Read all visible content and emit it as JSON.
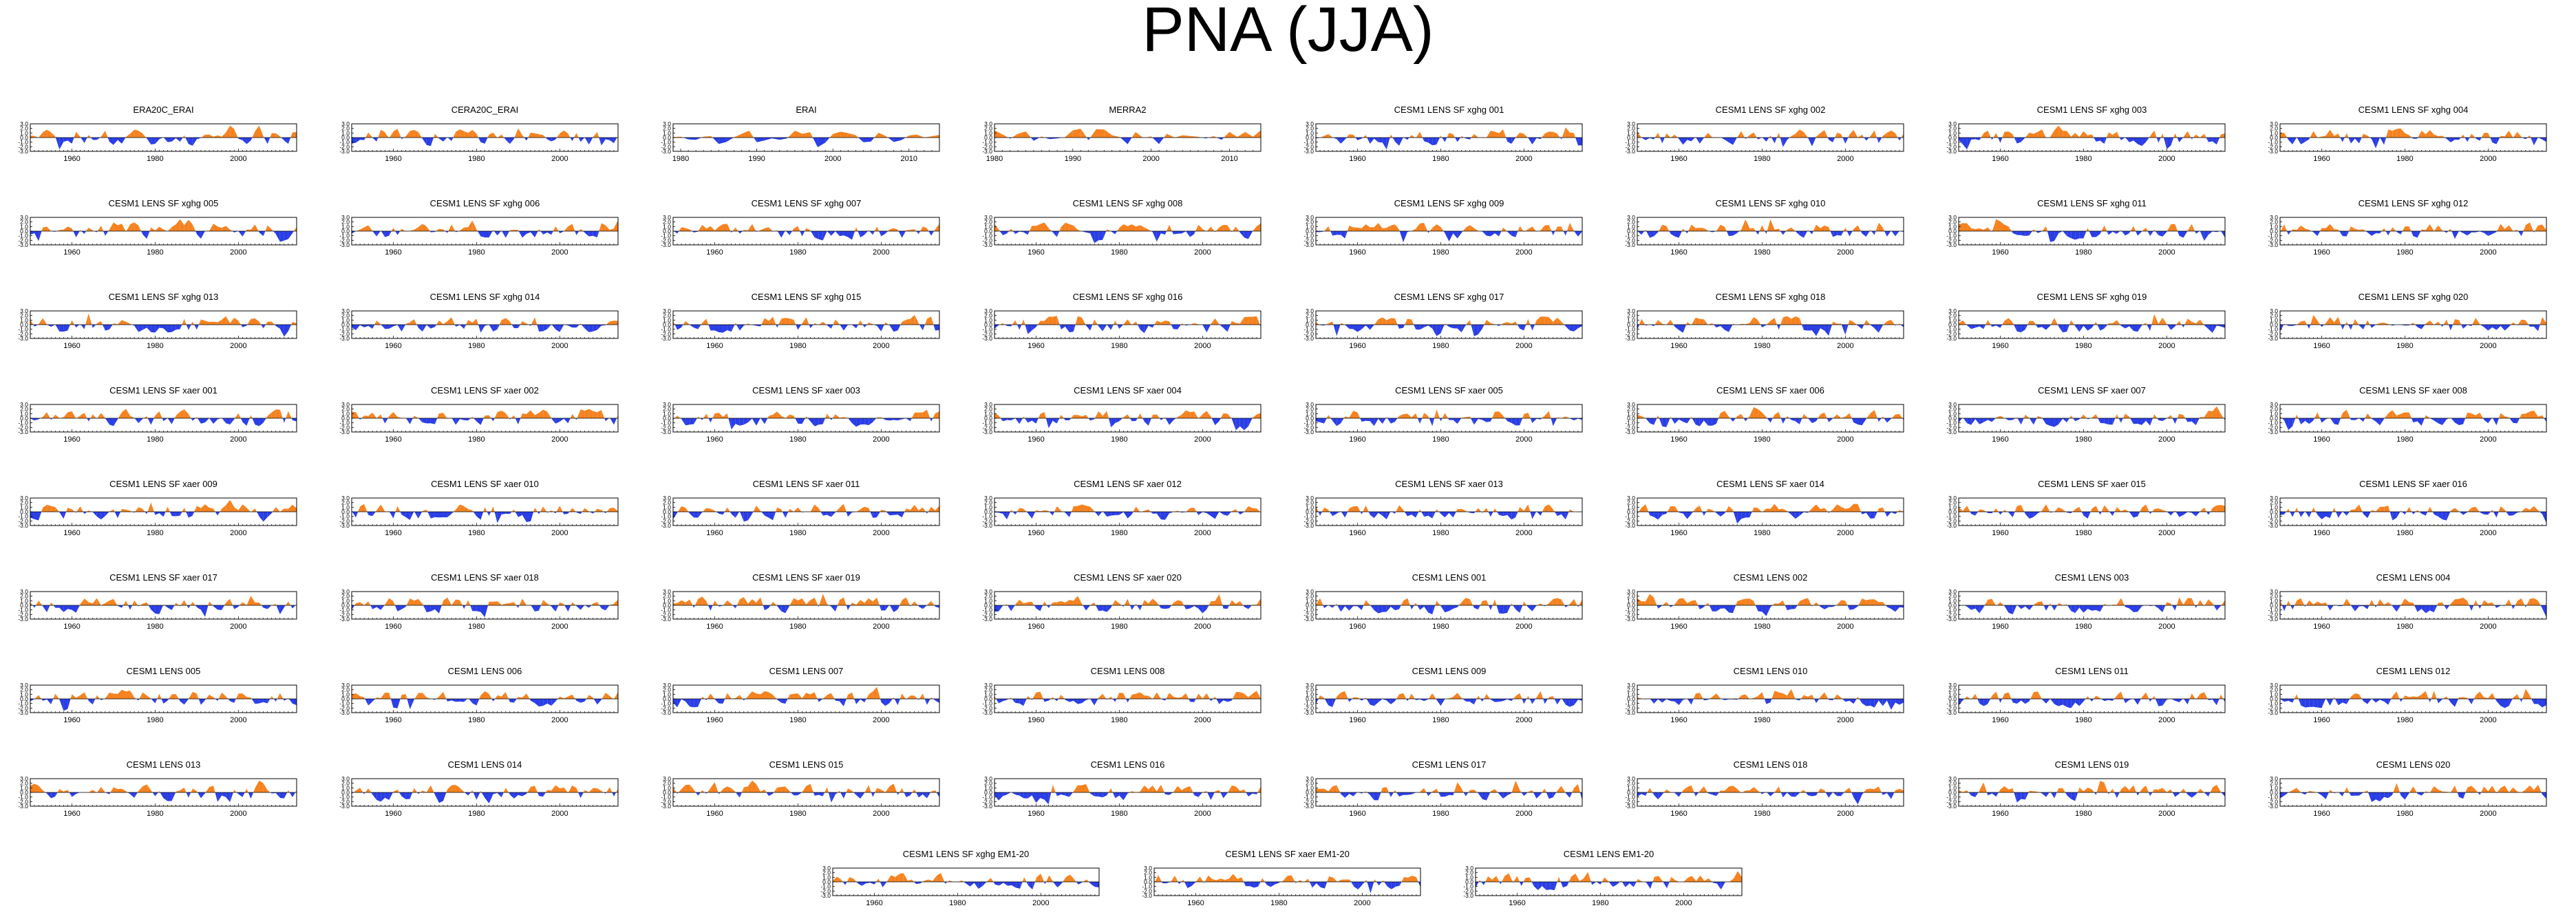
{
  "title": "PNA (JJA)",
  "colors": {
    "positive": "#f5821f",
    "negative": "#2a3ee6",
    "axis": "#000000"
  },
  "chart_data": {
    "type": "area",
    "layout": "panel-grid",
    "y_ticks": [
      "3.0",
      "2.0",
      "1.0",
      "0.0",
      "-1.0",
      "-2.0",
      "-3.0"
    ],
    "ylim": [
      -3.0,
      3.0
    ],
    "panels": [
      {
        "title": "ERA20C_ERAI",
        "xlim": [
          1950,
          2014
        ],
        "xticks": [
          "1960",
          "1980",
          "2000"
        ],
        "seed": 101
      },
      {
        "title": "CERA20C_ERAI",
        "xlim": [
          1950,
          2014
        ],
        "xticks": [
          "1960",
          "1980",
          "2000"
        ],
        "seed": 102
      },
      {
        "title": "ERAI",
        "xlim": [
          1979,
          2014
        ],
        "xticks": [
          "1980",
          "1990",
          "2000",
          "2010"
        ],
        "seed": 103
      },
      {
        "title": "MERRA2",
        "xlim": [
          1980,
          2014
        ],
        "xticks": [
          "1980",
          "1990",
          "2000",
          "2010"
        ],
        "seed": 104
      },
      {
        "title": "CESM1 LENS SF xghg 001",
        "xlim": [
          1950,
          2014
        ],
        "xticks": [
          "1960",
          "1980",
          "2000"
        ],
        "seed": 105
      },
      {
        "title": "CESM1 LENS SF xghg 002",
        "xlim": [
          1950,
          2014
        ],
        "xticks": [
          "1960",
          "1980",
          "2000"
        ],
        "seed": 106
      },
      {
        "title": "CESM1 LENS SF xghg 003",
        "xlim": [
          1950,
          2014
        ],
        "xticks": [
          "1960",
          "1980",
          "2000"
        ],
        "seed": 107
      },
      {
        "title": "CESM1 LENS SF xghg 004",
        "xlim": [
          1950,
          2014
        ],
        "xticks": [
          "1960",
          "1980",
          "2000"
        ],
        "seed": 108
      },
      {
        "title": "CESM1 LENS SF xghg 005",
        "xlim": [
          1950,
          2014
        ],
        "xticks": [
          "1960",
          "1980",
          "2000"
        ],
        "seed": 109
      },
      {
        "title": "CESM1 LENS SF xghg 006",
        "xlim": [
          1950,
          2014
        ],
        "xticks": [
          "1960",
          "1980",
          "2000"
        ],
        "seed": 110
      },
      {
        "title": "CESM1 LENS SF xghg 007",
        "xlim": [
          1950,
          2014
        ],
        "xticks": [
          "1960",
          "1980",
          "2000"
        ],
        "seed": 111
      },
      {
        "title": "CESM1 LENS SF xghg 008",
        "xlim": [
          1950,
          2014
        ],
        "xticks": [
          "1960",
          "1980",
          "2000"
        ],
        "seed": 112
      },
      {
        "title": "CESM1 LENS SF xghg 009",
        "xlim": [
          1950,
          2014
        ],
        "xticks": [
          "1960",
          "1980",
          "2000"
        ],
        "seed": 113
      },
      {
        "title": "CESM1 LENS SF xghg 010",
        "xlim": [
          1950,
          2014
        ],
        "xticks": [
          "1960",
          "1980",
          "2000"
        ],
        "seed": 114
      },
      {
        "title": "CESM1 LENS SF xghg 011",
        "xlim": [
          1950,
          2014
        ],
        "xticks": [
          "1960",
          "1980",
          "2000"
        ],
        "seed": 115
      },
      {
        "title": "CESM1 LENS SF xghg 012",
        "xlim": [
          1950,
          2014
        ],
        "xticks": [
          "1960",
          "1980",
          "2000"
        ],
        "seed": 116
      },
      {
        "title": "CESM1 LENS SF xghg 013",
        "xlim": [
          1950,
          2014
        ],
        "xticks": [
          "1960",
          "1980",
          "2000"
        ],
        "seed": 117
      },
      {
        "title": "CESM1 LENS SF xghg 014",
        "xlim": [
          1950,
          2014
        ],
        "xticks": [
          "1960",
          "1980",
          "2000"
        ],
        "seed": 118
      },
      {
        "title": "CESM1 LENS SF xghg 015",
        "xlim": [
          1950,
          2014
        ],
        "xticks": [
          "1960",
          "1980",
          "2000"
        ],
        "seed": 119
      },
      {
        "title": "CESM1 LENS SF xghg 016",
        "xlim": [
          1950,
          2014
        ],
        "xticks": [
          "1960",
          "1980",
          "2000"
        ],
        "seed": 120
      },
      {
        "title": "CESM1 LENS SF xghg 017",
        "xlim": [
          1950,
          2014
        ],
        "xticks": [
          "1960",
          "1980",
          "2000"
        ],
        "seed": 121
      },
      {
        "title": "CESM1 LENS SF xghg 018",
        "xlim": [
          1950,
          2014
        ],
        "xticks": [
          "1960",
          "1980",
          "2000"
        ],
        "seed": 122
      },
      {
        "title": "CESM1 LENS SF xghg 019",
        "xlim": [
          1950,
          2014
        ],
        "xticks": [
          "1960",
          "1980",
          "2000"
        ],
        "seed": 123
      },
      {
        "title": "CESM1 LENS SF xghg 020",
        "xlim": [
          1950,
          2014
        ],
        "xticks": [
          "1960",
          "1980",
          "2000"
        ],
        "seed": 124
      },
      {
        "title": "CESM1 LENS SF xaer 001",
        "xlim": [
          1950,
          2014
        ],
        "xticks": [
          "1960",
          "1980",
          "2000"
        ],
        "seed": 125
      },
      {
        "title": "CESM1 LENS SF xaer 002",
        "xlim": [
          1950,
          2014
        ],
        "xticks": [
          "1960",
          "1980",
          "2000"
        ],
        "seed": 126
      },
      {
        "title": "CESM1 LENS SF xaer 003",
        "xlim": [
          1950,
          2014
        ],
        "xticks": [
          "1960",
          "1980",
          "2000"
        ],
        "seed": 127
      },
      {
        "title": "CESM1 LENS SF xaer 004",
        "xlim": [
          1950,
          2014
        ],
        "xticks": [
          "1960",
          "1980",
          "2000"
        ],
        "seed": 128
      },
      {
        "title": "CESM1 LENS SF xaer 005",
        "xlim": [
          1950,
          2014
        ],
        "xticks": [
          "1960",
          "1980",
          "2000"
        ],
        "seed": 129
      },
      {
        "title": "CESM1 LENS SF xaer 006",
        "xlim": [
          1950,
          2014
        ],
        "xticks": [
          "1960",
          "1980",
          "2000"
        ],
        "seed": 130
      },
      {
        "title": "CESM1 LENS SF xaer 007",
        "xlim": [
          1950,
          2014
        ],
        "xticks": [
          "1960",
          "1980",
          "2000"
        ],
        "seed": 131
      },
      {
        "title": "CESM1 LENS SF xaer 008",
        "xlim": [
          1950,
          2014
        ],
        "xticks": [
          "1960",
          "1980",
          "2000"
        ],
        "seed": 132
      },
      {
        "title": "CESM1 LENS SF xaer 009",
        "xlim": [
          1950,
          2014
        ],
        "xticks": [
          "1960",
          "1980",
          "2000"
        ],
        "seed": 133
      },
      {
        "title": "CESM1 LENS SF xaer 010",
        "xlim": [
          1950,
          2014
        ],
        "xticks": [
          "1960",
          "1980",
          "2000"
        ],
        "seed": 134
      },
      {
        "title": "CESM1 LENS SF xaer 011",
        "xlim": [
          1950,
          2014
        ],
        "xticks": [
          "1960",
          "1980",
          "2000"
        ],
        "seed": 135
      },
      {
        "title": "CESM1 LENS SF xaer 012",
        "xlim": [
          1950,
          2014
        ],
        "xticks": [
          "1960",
          "1980",
          "2000"
        ],
        "seed": 136
      },
      {
        "title": "CESM1 LENS SF xaer 013",
        "xlim": [
          1950,
          2014
        ],
        "xticks": [
          "1960",
          "1980",
          "2000"
        ],
        "seed": 137
      },
      {
        "title": "CESM1 LENS SF xaer 014",
        "xlim": [
          1950,
          2014
        ],
        "xticks": [
          "1960",
          "1980",
          "2000"
        ],
        "seed": 138
      },
      {
        "title": "CESM1 LENS SF xaer 015",
        "xlim": [
          1950,
          2014
        ],
        "xticks": [
          "1960",
          "1980",
          "2000"
        ],
        "seed": 139
      },
      {
        "title": "CESM1 LENS SF xaer 016",
        "xlim": [
          1950,
          2014
        ],
        "xticks": [
          "1960",
          "1980",
          "2000"
        ],
        "seed": 140
      },
      {
        "title": "CESM1 LENS SF xaer 017",
        "xlim": [
          1950,
          2014
        ],
        "xticks": [
          "1960",
          "1980",
          "2000"
        ],
        "seed": 141
      },
      {
        "title": "CESM1 LENS SF xaer 018",
        "xlim": [
          1950,
          2014
        ],
        "xticks": [
          "1960",
          "1980",
          "2000"
        ],
        "seed": 142
      },
      {
        "title": "CESM1 LENS SF xaer 019",
        "xlim": [
          1950,
          2014
        ],
        "xticks": [
          "1960",
          "1980",
          "2000"
        ],
        "seed": 143
      },
      {
        "title": "CESM1 LENS SF xaer 020",
        "xlim": [
          1950,
          2014
        ],
        "xticks": [
          "1960",
          "1980",
          "2000"
        ],
        "seed": 144
      },
      {
        "title": "CESM1 LENS 001",
        "xlim": [
          1950,
          2014
        ],
        "xticks": [
          "1960",
          "1980",
          "2000"
        ],
        "seed": 145
      },
      {
        "title": "CESM1 LENS 002",
        "xlim": [
          1950,
          2014
        ],
        "xticks": [
          "1960",
          "1980",
          "2000"
        ],
        "seed": 146
      },
      {
        "title": "CESM1 LENS 003",
        "xlim": [
          1950,
          2014
        ],
        "xticks": [
          "1960",
          "1980",
          "2000"
        ],
        "seed": 147
      },
      {
        "title": "CESM1 LENS 004",
        "xlim": [
          1950,
          2014
        ],
        "xticks": [
          "1960",
          "1980",
          "2000"
        ],
        "seed": 148
      },
      {
        "title": "CESM1 LENS 005",
        "xlim": [
          1950,
          2014
        ],
        "xticks": [
          "1960",
          "1980",
          "2000"
        ],
        "seed": 149
      },
      {
        "title": "CESM1 LENS 006",
        "xlim": [
          1950,
          2014
        ],
        "xticks": [
          "1960",
          "1980",
          "2000"
        ],
        "seed": 150
      },
      {
        "title": "CESM1 LENS 007",
        "xlim": [
          1950,
          2014
        ],
        "xticks": [
          "1960",
          "1980",
          "2000"
        ],
        "seed": 151
      },
      {
        "title": "CESM1 LENS 008",
        "xlim": [
          1950,
          2014
        ],
        "xticks": [
          "1960",
          "1980",
          "2000"
        ],
        "seed": 152
      },
      {
        "title": "CESM1 LENS 009",
        "xlim": [
          1950,
          2014
        ],
        "xticks": [
          "1960",
          "1980",
          "2000"
        ],
        "seed": 153
      },
      {
        "title": "CESM1 LENS 010",
        "xlim": [
          1950,
          2014
        ],
        "xticks": [
          "1960",
          "1980",
          "2000"
        ],
        "seed": 154
      },
      {
        "title": "CESM1 LENS 011",
        "xlim": [
          1950,
          2014
        ],
        "xticks": [
          "1960",
          "1980",
          "2000"
        ],
        "seed": 155
      },
      {
        "title": "CESM1 LENS 012",
        "xlim": [
          1950,
          2014
        ],
        "xticks": [
          "1960",
          "1980",
          "2000"
        ],
        "seed": 156
      },
      {
        "title": "CESM1 LENS 013",
        "xlim": [
          1950,
          2014
        ],
        "xticks": [
          "1960",
          "1980",
          "2000"
        ],
        "seed": 157
      },
      {
        "title": "CESM1 LENS 014",
        "xlim": [
          1950,
          2014
        ],
        "xticks": [
          "1960",
          "1980",
          "2000"
        ],
        "seed": 158
      },
      {
        "title": "CESM1 LENS 015",
        "xlim": [
          1950,
          2014
        ],
        "xticks": [
          "1960",
          "1980",
          "2000"
        ],
        "seed": 159
      },
      {
        "title": "CESM1 LENS 016",
        "xlim": [
          1950,
          2014
        ],
        "xticks": [
          "1960",
          "1980",
          "2000"
        ],
        "seed": 160
      },
      {
        "title": "CESM1 LENS 017",
        "xlim": [
          1950,
          2014
        ],
        "xticks": [
          "1960",
          "1980",
          "2000"
        ],
        "seed": 161
      },
      {
        "title": "CESM1 LENS 018",
        "xlim": [
          1950,
          2014
        ],
        "xticks": [
          "1960",
          "1980",
          "2000"
        ],
        "seed": 162
      },
      {
        "title": "CESM1 LENS 019",
        "xlim": [
          1950,
          2014
        ],
        "xticks": [
          "1960",
          "1980",
          "2000"
        ],
        "seed": 163
      },
      {
        "title": "CESM1 LENS 020",
        "xlim": [
          1950,
          2014
        ],
        "xticks": [
          "1960",
          "1980",
          "2000"
        ],
        "seed": 164
      },
      {
        "title": "CESM1 LENS SF xghg EM1-20",
        "xlim": [
          1950,
          2014
        ],
        "xticks": [
          "1960",
          "1980",
          "2000"
        ],
        "seed": 165
      },
      {
        "title": "CESM1 LENS SF xaer EM1-20",
        "xlim": [
          1950,
          2014
        ],
        "xticks": [
          "1960",
          "1980",
          "2000"
        ],
        "seed": 166
      },
      {
        "title": "CESM1 LENS EM1-20",
        "xlim": [
          1950,
          2014
        ],
        "xticks": [
          "1960",
          "1980",
          "2000"
        ],
        "seed": 167
      }
    ]
  }
}
